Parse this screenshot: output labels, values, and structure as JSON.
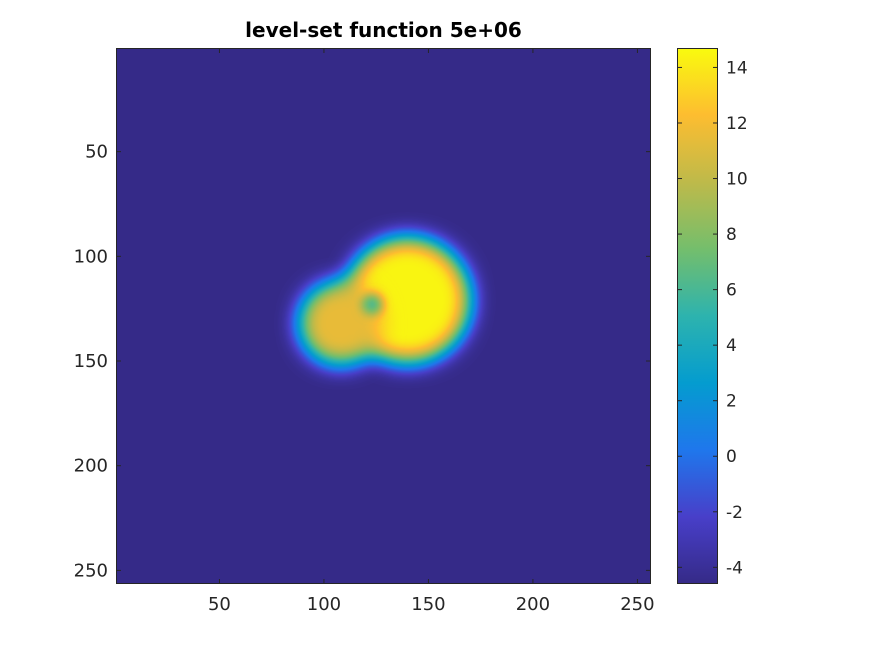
{
  "chart_data": {
    "type": "heatmap",
    "title": "level-set function 5e+06",
    "colormap": "parula",
    "x_range": [
      1,
      256
    ],
    "y_range": [
      1,
      256
    ],
    "y_reversed": true,
    "x_ticks": [
      50,
      100,
      150,
      200,
      250
    ],
    "y_ticks": [
      50,
      100,
      150,
      200,
      250
    ],
    "x_tick_labels": [
      "50",
      "100",
      "150",
      "200",
      "250"
    ],
    "y_tick_labels": [
      "50",
      "100",
      "150",
      "200",
      "250"
    ],
    "color_range": [
      -4.6,
      14.7
    ],
    "colorbar_ticks": [
      -4,
      -2,
      0,
      2,
      4,
      6,
      8,
      10,
      12,
      14
    ],
    "colorbar_tick_labels": [
      "-4",
      "-2",
      "0",
      "2",
      "4",
      "6",
      "8",
      "10",
      "12",
      "14"
    ],
    "background_value": -4.5,
    "features": [
      {
        "kind": "blob",
        "cx": 140,
        "cy": 121,
        "radius": 30,
        "peak": 14.5
      },
      {
        "kind": "blob",
        "cx": 108,
        "cy": 132,
        "radius": 20,
        "peak": 11.5
      },
      {
        "kind": "depression",
        "cx": 123,
        "cy": 123,
        "radius": 5,
        "value": 6
      }
    ]
  }
}
